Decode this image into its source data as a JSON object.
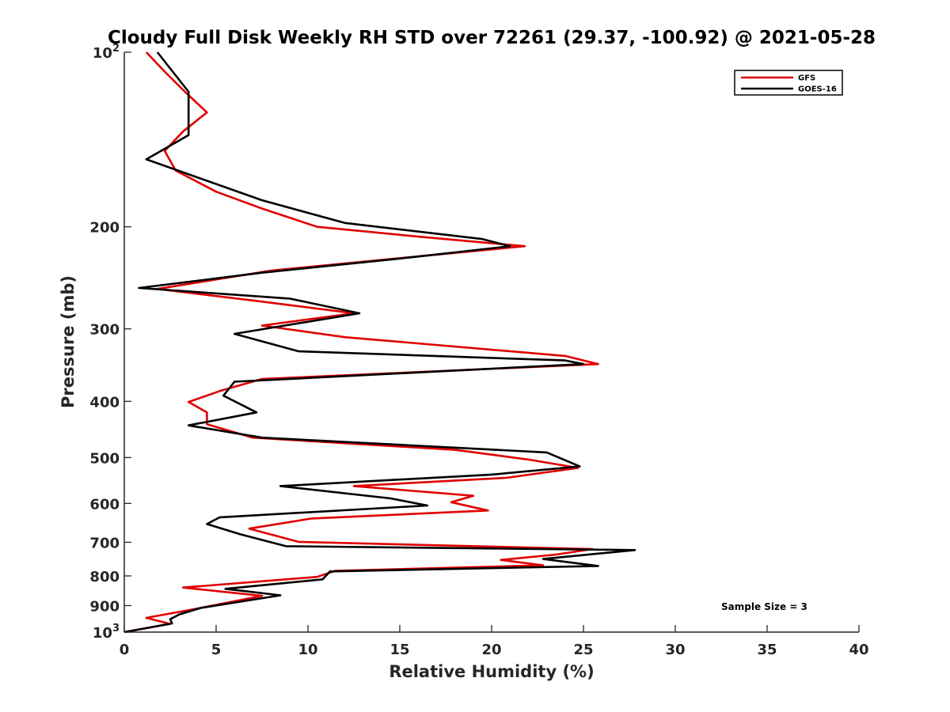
{
  "chart_data": {
    "type": "line",
    "title": "Cloudy Full Disk Weekly RH STD over 72261 (29.37, -100.92) @ 2021-05-28",
    "xlabel": "Relative Humidity (%)",
    "ylabel": "Pressure (mb)",
    "xlim": [
      0,
      40
    ],
    "ylim": [
      100,
      1000
    ],
    "y_scale": "log",
    "y_reversed": true,
    "x_ticks": [
      "0",
      "5",
      "10",
      "15",
      "20",
      "25",
      "30",
      "35",
      "40"
    ],
    "x_tick_values": [
      0,
      5,
      10,
      15,
      20,
      25,
      30,
      35,
      40
    ],
    "y_ticks": [
      {
        "value": 100,
        "base": "10",
        "exp": "2"
      },
      {
        "value": 200,
        "label": "200"
      },
      {
        "value": 300,
        "label": "300"
      },
      {
        "value": 400,
        "label": "400"
      },
      {
        "value": 500,
        "label": "500"
      },
      {
        "value": 600,
        "label": "600"
      },
      {
        "value": 700,
        "label": "700"
      },
      {
        "value": 800,
        "label": "800"
      },
      {
        "value": 900,
        "label": "900"
      },
      {
        "value": 1000,
        "base": "10",
        "exp": "3"
      }
    ],
    "grid": false,
    "legend_position": "top-right",
    "annotation": "Sample Size = 3",
    "series": [
      {
        "name": "GFS",
        "color": "#e00000",
        "points": [
          [
            1.2,
            100
          ],
          [
            2.2,
            108
          ],
          [
            3.3,
            117
          ],
          [
            4.5,
            127
          ],
          [
            3.2,
            137
          ],
          [
            2.2,
            148
          ],
          [
            2.8,
            160
          ],
          [
            5.0,
            174
          ],
          [
            7.5,
            186
          ],
          [
            10.5,
            200
          ],
          [
            16,
            208
          ],
          [
            21.8,
            216
          ],
          [
            16,
            225
          ],
          [
            8,
            238
          ],
          [
            1.8,
            256
          ],
          [
            7,
            268
          ],
          [
            12.5,
            282
          ],
          [
            7.5,
            296
          ],
          [
            12,
            310
          ],
          [
            24,
            334
          ],
          [
            25.8,
            345
          ],
          [
            7.5,
            366
          ],
          [
            5.2,
            384
          ],
          [
            3.5,
            401
          ],
          [
            4.5,
            418
          ],
          [
            4.5,
            438
          ],
          [
            7,
            462
          ],
          [
            18,
            485
          ],
          [
            22,
            504
          ],
          [
            24.7,
            521
          ],
          [
            20.8,
            542
          ],
          [
            12.5,
            560
          ],
          [
            19,
            582
          ],
          [
            17.8,
            597
          ],
          [
            19.8,
            617
          ],
          [
            10.2,
            637
          ],
          [
            6.8,
            663
          ],
          [
            9.5,
            699
          ],
          [
            25.5,
            719
          ],
          [
            23.5,
            735
          ],
          [
            20.5,
            751
          ],
          [
            22.8,
            767
          ],
          [
            11.5,
            784
          ],
          [
            10.5,
            803
          ],
          [
            3.2,
            838
          ],
          [
            7.5,
            866
          ],
          [
            3.8,
            913
          ],
          [
            1.2,
            945
          ],
          [
            2.5,
            968
          ],
          [
            0,
            1000
          ]
        ]
      },
      {
        "name": "GOES-16",
        "color": "#000000",
        "points": [
          [
            1.8,
            100
          ],
          [
            3.5,
            117
          ],
          [
            3.5,
            134
          ],
          [
            3.5,
            139
          ],
          [
            2.0,
            148
          ],
          [
            1.2,
            153
          ],
          [
            7.5,
            180
          ],
          [
            12,
            197
          ],
          [
            19.5,
            210
          ],
          [
            21.0,
            216
          ],
          [
            15.5,
            226
          ],
          [
            7.5,
            240
          ],
          [
            0.8,
            255
          ],
          [
            9.0,
            266
          ],
          [
            12.8,
            282
          ],
          [
            6.0,
            306
          ],
          [
            9.5,
            328
          ],
          [
            24.0,
            340
          ],
          [
            25.0,
            345
          ],
          [
            6.0,
            370
          ],
          [
            5.4,
            391
          ],
          [
            7.2,
            418
          ],
          [
            3.5,
            440
          ],
          [
            7.5,
            462
          ],
          [
            23.0,
            490
          ],
          [
            24.8,
            518
          ],
          [
            20.0,
            535
          ],
          [
            8.5,
            560
          ],
          [
            14.5,
            588
          ],
          [
            16.5,
            605
          ],
          [
            5.2,
            634
          ],
          [
            4.5,
            651
          ],
          [
            6.3,
            678
          ],
          [
            8.8,
            711
          ],
          [
            27.8,
            722
          ],
          [
            22.8,
            748
          ],
          [
            25.8,
            769
          ],
          [
            11.2,
            786
          ],
          [
            10.8,
            811
          ],
          [
            5.5,
            842
          ],
          [
            8.5,
            864
          ],
          [
            4.2,
            908
          ],
          [
            3.0,
            932
          ],
          [
            2.5,
            950
          ],
          [
            2.6,
            966
          ],
          [
            0,
            1000
          ]
        ]
      }
    ]
  }
}
